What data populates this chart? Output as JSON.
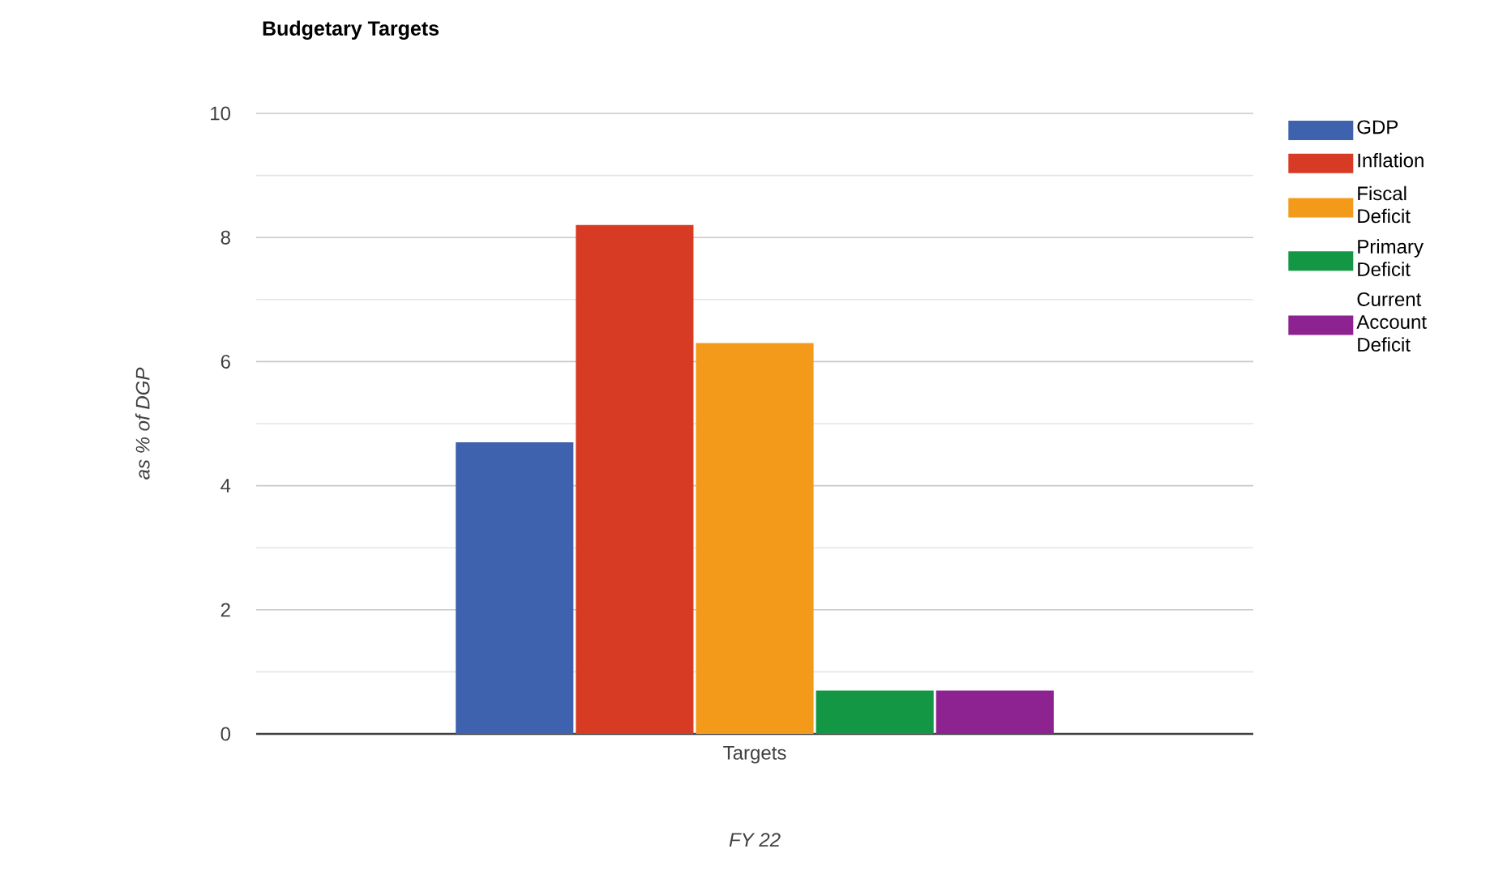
{
  "chart_data": {
    "type": "bar",
    "title": "Budgetary Targets",
    "xlabel": "FY 22",
    "ylabel": "as % of DGP",
    "categories": [
      "Targets"
    ],
    "series": [
      {
        "name": "GDP",
        "color": "#3e62ad",
        "values": [
          4.7
        ]
      },
      {
        "name": "Inflation",
        "color": "#d83b24",
        "values": [
          8.2
        ]
      },
      {
        "name": "Fiscal Deficit",
        "color": "#f39a1a",
        "values": [
          6.3
        ]
      },
      {
        "name": "Primary Deficit",
        "color": "#149744",
        "values": [
          0.7
        ]
      },
      {
        "name": "Current Account Deficit",
        "color": "#8d2391",
        "values": [
          0.7
        ]
      }
    ],
    "ylim": [
      0,
      10
    ],
    "yticks": [
      0,
      2,
      4,
      6,
      8,
      10
    ],
    "grid": true,
    "legend": "right"
  }
}
